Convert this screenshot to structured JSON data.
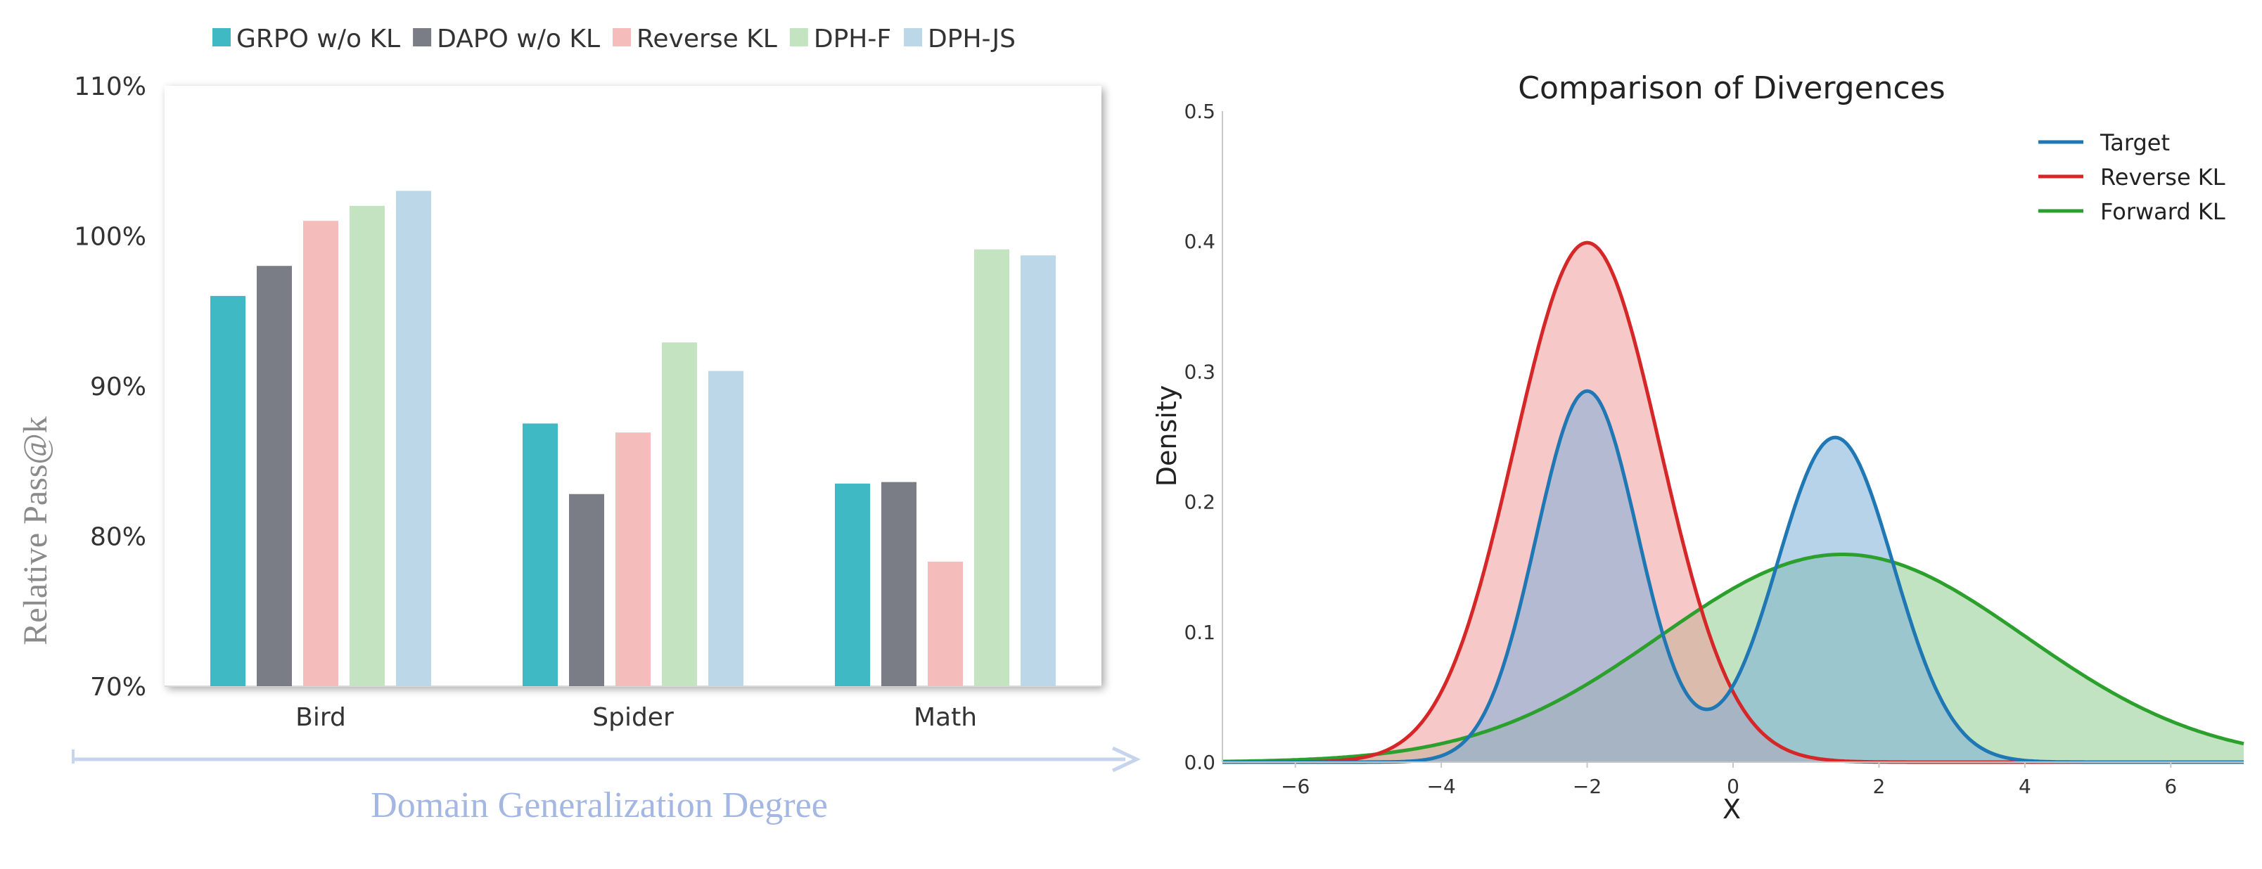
{
  "chart_data": [
    {
      "type": "bar",
      "categories": [
        "Bird",
        "Spider",
        "Math"
      ],
      "series": [
        {
          "name": "GRPO w/o KL",
          "color": "#3fbac4",
          "values": [
            96,
            87.5,
            83.5
          ]
        },
        {
          "name": "DAPO w/o KL",
          "color": "#7b7d86",
          "values": [
            98,
            82.8,
            83.6
          ]
        },
        {
          "name": "Reverse KL",
          "color": "#f5bcbc",
          "values": [
            101,
            86.9,
            78.3
          ]
        },
        {
          "name": "DPH-F",
          "color": "#c4e3c1",
          "values": [
            102,
            92.9,
            99.1
          ]
        },
        {
          "name": "DPH-JS",
          "color": "#bcd8e8",
          "values": [
            103,
            91,
            98.7
          ]
        }
      ],
      "yticks": [
        "110%",
        "100%",
        "90%",
        "80%",
        "70%"
      ],
      "ylim": [
        70,
        110
      ],
      "ylabel": "Relative Pass@k",
      "xlabel": "Domain Generalization Degree",
      "legend": "top"
    },
    {
      "type": "area",
      "title": "Comparison of Divergences",
      "xlabel": "X",
      "ylabel": "Density",
      "xlim": [
        -7,
        7
      ],
      "ylim": [
        0,
        0.5
      ],
      "xticks": [
        "−6",
        "−4",
        "−2",
        "0",
        "2",
        "4",
        "6"
      ],
      "yticks": [
        "0.0",
        "0.1",
        "0.2",
        "0.3",
        "0.4",
        "0.5"
      ],
      "legend": "top-right",
      "series": [
        {
          "name": "Target",
          "color": "#1f77b4",
          "fill": "#7bafd9",
          "peaks": [
            {
              "mean": -2,
              "std": 0.7,
              "weight": 0.5
            },
            {
              "mean": 1.4,
              "std": 0.8,
              "weight": 0.5
            }
          ]
        },
        {
          "name": "Reverse KL",
          "color": "#d62728",
          "fill": "#ee9a9b",
          "peaks": [
            {
              "mean": -2,
              "std": 1.0,
              "weight": 1.0
            }
          ]
        },
        {
          "name": "Forward KL",
          "color": "#2ca02c",
          "fill": "#90cc8e",
          "peaks": [
            {
              "mean": 1.5,
              "std": 2.5,
              "weight": 1.0
            }
          ]
        }
      ]
    }
  ]
}
